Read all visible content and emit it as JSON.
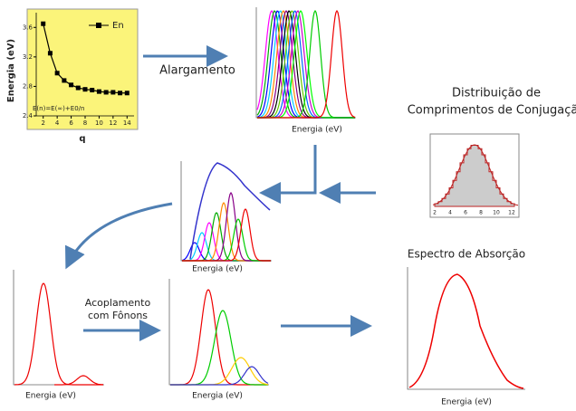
{
  "chart_data": {
    "type": "line",
    "title": "E(n)=E(∞)+E0/n",
    "legend": "En",
    "x_label": "q",
    "y_label": "Energia (eV)",
    "x": [
      2,
      3,
      4,
      5,
      6,
      7,
      8,
      9,
      10,
      11,
      12,
      13,
      14
    ],
    "values": [
      3.65,
      3.25,
      2.98,
      2.88,
      2.82,
      2.78,
      2.76,
      2.75,
      2.73,
      2.72,
      2.72,
      2.71,
      2.71
    ],
    "xlim": [
      1,
      15
    ],
    "ylim": [
      2.4,
      3.8
    ],
    "xticks": [
      2,
      4,
      6,
      8,
      10,
      12,
      14
    ],
    "yticks": [
      2.4,
      2.8,
      3.2,
      3.6
    ],
    "color": "#000000"
  },
  "labels": {
    "broadening": "Alargamento",
    "distribution": [
      "Distribuição de",
      "Comprimentos de Conjugação"
    ],
    "absorption": "Espectro de Absorção",
    "coupling": [
      "Acoplamento",
      "com Fônons"
    ],
    "energy_axis": "Energia (eV)",
    "histogram_ticks": [
      2,
      4,
      6,
      8,
      10,
      12
    ]
  }
}
